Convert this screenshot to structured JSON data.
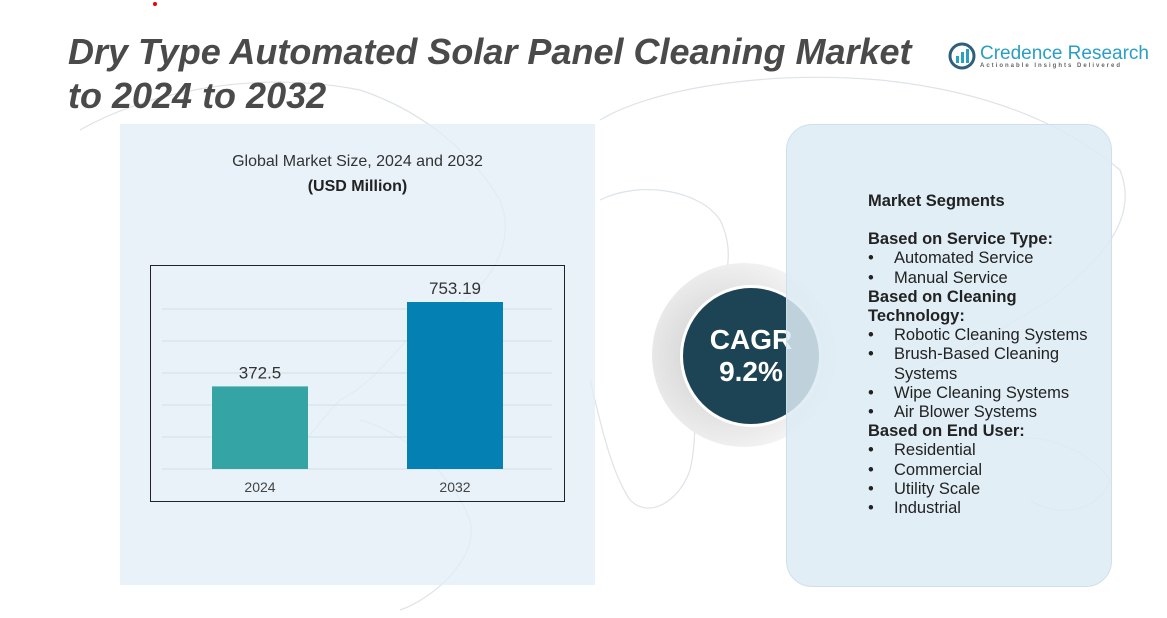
{
  "title": "Dry Type Automated Solar Panel Cleaning Market to 2024 to 2032",
  "logo": {
    "name": "Credence Research",
    "tagline": "Actionable Insights Delivered"
  },
  "chart_data": {
    "type": "bar",
    "title": "Global Market Size, 2024 and 2032",
    "ylabel": "(USD Million)",
    "categories": [
      "2024",
      "2032"
    ],
    "values": [
      372.5,
      753.19
    ],
    "data_labels": [
      "372.5",
      "753.19"
    ],
    "colors": [
      "#35a4a5",
      "#0481b2"
    ],
    "grid": true
  },
  "cagr": {
    "label": "CAGR",
    "value": "9.2%"
  },
  "segments": {
    "title": "Market Segments",
    "groups": [
      {
        "heading": "Based on Service Type:",
        "items": [
          "Automated Service",
          "Manual Service"
        ]
      },
      {
        "heading": "Based on Cleaning Technology:",
        "items": [
          "Robotic Cleaning Systems",
          "Brush-Based Cleaning Systems",
          "Wipe Cleaning Systems",
          "Air Blower Systems"
        ]
      },
      {
        "heading": "Based on End User:",
        "items": [
          "Residential",
          "Commercial",
          "Utility Scale",
          "Industrial"
        ]
      }
    ]
  }
}
